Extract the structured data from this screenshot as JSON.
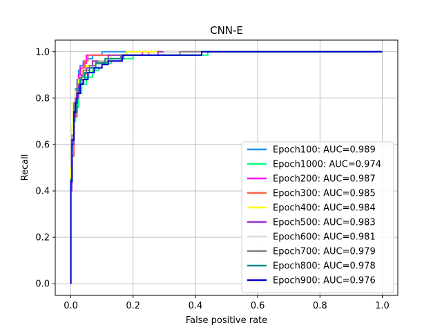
{
  "chart_data": {
    "type": "line",
    "title": "CNN-E",
    "xlabel": "False positive rate",
    "ylabel": "Recall",
    "xlim": [
      -0.05,
      1.05
    ],
    "ylim": [
      -0.05,
      1.05
    ],
    "xticks": [
      "0.0",
      "0.2",
      "0.4",
      "0.6",
      "0.8",
      "1.0"
    ],
    "yticks": [
      "0.0",
      "0.2",
      "0.4",
      "0.6",
      "0.8",
      "1.0"
    ],
    "grid": true,
    "legend_position": "lower-right",
    "series": [
      {
        "name": "Epoch100: AUC=0.989",
        "color": "#1e90ff",
        "x": [
          0,
          0,
          0.003,
          0.003,
          0.01,
          0.01,
          0.015,
          0.015,
          0.02,
          0.02,
          0.025,
          0.025,
          0.03,
          0.03,
          0.04,
          0.04,
          0.05,
          0.05,
          0.07,
          0.07,
          0.1,
          0.1,
          1.0
        ],
        "y": [
          0,
          0.4,
          0.4,
          0.6,
          0.6,
          0.75,
          0.75,
          0.84,
          0.84,
          0.88,
          0.88,
          0.92,
          0.92,
          0.94,
          0.94,
          0.96,
          0.96,
          0.97,
          0.97,
          0.985,
          0.985,
          1.0,
          1.0
        ]
      },
      {
        "name": "Epoch1000: AUC=0.974",
        "color": "#00ff7f",
        "x": [
          0,
          0,
          0.003,
          0.003,
          0.01,
          0.01,
          0.015,
          0.015,
          0.025,
          0.025,
          0.035,
          0.035,
          0.05,
          0.05,
          0.07,
          0.07,
          0.09,
          0.09,
          0.13,
          0.13,
          0.2,
          0.2,
          0.44,
          0.44,
          1.0
        ],
        "y": [
          0,
          0.42,
          0.42,
          0.62,
          0.62,
          0.7,
          0.7,
          0.76,
          0.76,
          0.82,
          0.82,
          0.86,
          0.86,
          0.89,
          0.89,
          0.92,
          0.92,
          0.95,
          0.95,
          0.97,
          0.97,
          0.985,
          0.985,
          1.0,
          1.0
        ]
      },
      {
        "name": "Epoch200: AUC=0.987",
        "color": "#ff00ff",
        "x": [
          0,
          0,
          0.003,
          0.003,
          0.01,
          0.01,
          0.015,
          0.015,
          0.02,
          0.02,
          0.025,
          0.025,
          0.03,
          0.03,
          0.04,
          0.04,
          0.05,
          0.05,
          0.23,
          0.23,
          1.0
        ],
        "y": [
          0,
          0.4,
          0.4,
          0.62,
          0.62,
          0.76,
          0.76,
          0.82,
          0.82,
          0.86,
          0.86,
          0.9,
          0.9,
          0.93,
          0.93,
          0.95,
          0.95,
          0.985,
          0.985,
          1.0,
          1.0
        ]
      },
      {
        "name": "Epoch300: AUC=0.985",
        "color": "#ff6347",
        "x": [
          0,
          0,
          0.003,
          0.003,
          0.01,
          0.01,
          0.02,
          0.02,
          0.025,
          0.025,
          0.035,
          0.035,
          0.045,
          0.045,
          0.055,
          0.055,
          0.25,
          0.25,
          1.0
        ],
        "y": [
          0,
          0.4,
          0.4,
          0.55,
          0.55,
          0.72,
          0.72,
          0.82,
          0.82,
          0.88,
          0.88,
          0.93,
          0.93,
          0.96,
          0.96,
          0.985,
          0.985,
          1.0,
          1.0
        ]
      },
      {
        "name": "Epoch400: AUC=0.984",
        "color": "#ffff00",
        "x": [
          0,
          0,
          0.003,
          0.003,
          0.008,
          0.008,
          0.015,
          0.015,
          0.025,
          0.025,
          0.035,
          0.035,
          0.05,
          0.05,
          0.07,
          0.07,
          0.13,
          0.13,
          0.18,
          0.18,
          1.0
        ],
        "y": [
          0,
          0.5,
          0.5,
          0.68,
          0.68,
          0.78,
          0.78,
          0.83,
          0.83,
          0.88,
          0.88,
          0.92,
          0.92,
          0.94,
          0.94,
          0.96,
          0.96,
          0.985,
          0.985,
          1.0,
          1.0
        ]
      },
      {
        "name": "Epoch500: AUC=0.983",
        "color": "#9932cc",
        "x": [
          0,
          0,
          0.003,
          0.003,
          0.01,
          0.01,
          0.015,
          0.015,
          0.025,
          0.025,
          0.035,
          0.035,
          0.05,
          0.05,
          0.07,
          0.07,
          0.12,
          0.12,
          0.28,
          0.28,
          1.0
        ],
        "y": [
          0,
          0.4,
          0.4,
          0.6,
          0.6,
          0.72,
          0.72,
          0.8,
          0.8,
          0.86,
          0.86,
          0.9,
          0.9,
          0.93,
          0.93,
          0.96,
          0.96,
          0.985,
          0.985,
          1.0,
          1.0
        ]
      },
      {
        "name": "Epoch600: AUC=0.981",
        "color": "#dcdcdc",
        "x": [
          0,
          0,
          0.004,
          0.004,
          0.01,
          0.01,
          0.02,
          0.02,
          0.03,
          0.03,
          0.045,
          0.045,
          0.06,
          0.06,
          0.09,
          0.09,
          0.16,
          0.16,
          0.3,
          0.3,
          1.0
        ],
        "y": [
          0,
          0.45,
          0.45,
          0.62,
          0.62,
          0.74,
          0.74,
          0.82,
          0.82,
          0.87,
          0.87,
          0.9,
          0.9,
          0.93,
          0.93,
          0.96,
          0.96,
          0.985,
          0.985,
          1.0,
          1.0
        ]
      },
      {
        "name": "Epoch700: AUC=0.979",
        "color": "#808080",
        "x": [
          0,
          0,
          0.004,
          0.004,
          0.01,
          0.01,
          0.02,
          0.02,
          0.03,
          0.03,
          0.04,
          0.04,
          0.06,
          0.06,
          0.08,
          0.08,
          0.12,
          0.12,
          0.16,
          0.16,
          0.35,
          0.35,
          1.0
        ],
        "y": [
          0,
          0.45,
          0.45,
          0.64,
          0.64,
          0.78,
          0.78,
          0.86,
          0.86,
          0.89,
          0.89,
          0.92,
          0.92,
          0.94,
          0.94,
          0.955,
          0.955,
          0.97,
          0.97,
          0.985,
          0.985,
          1.0,
          1.0
        ]
      },
      {
        "name": "Epoch800: AUC=0.978",
        "color": "#008b8b",
        "x": [
          0,
          0,
          0.004,
          0.004,
          0.01,
          0.01,
          0.02,
          0.02,
          0.03,
          0.03,
          0.045,
          0.045,
          0.06,
          0.06,
          0.08,
          0.08,
          0.11,
          0.11,
          0.17,
          0.17,
          0.42,
          0.42,
          1.0
        ],
        "y": [
          0,
          0.45,
          0.45,
          0.62,
          0.62,
          0.74,
          0.74,
          0.84,
          0.84,
          0.88,
          0.88,
          0.91,
          0.91,
          0.93,
          0.93,
          0.95,
          0.95,
          0.97,
          0.97,
          0.985,
          0.985,
          1.0,
          1.0
        ]
      },
      {
        "name": "Epoch900: AUC=0.976",
        "color": "#0000cd",
        "x": [
          0,
          0,
          0.004,
          0.004,
          0.01,
          0.01,
          0.015,
          0.015,
          0.02,
          0.02,
          0.03,
          0.03,
          0.04,
          0.04,
          0.055,
          0.055,
          0.075,
          0.075,
          0.1,
          0.1,
          0.12,
          0.12,
          0.165,
          0.165,
          0.42,
          0.42,
          1.0
        ],
        "y": [
          0,
          0.44,
          0.44,
          0.62,
          0.62,
          0.74,
          0.74,
          0.78,
          0.78,
          0.82,
          0.82,
          0.86,
          0.86,
          0.88,
          0.88,
          0.91,
          0.91,
          0.93,
          0.93,
          0.945,
          0.945,
          0.96,
          0.96,
          0.985,
          0.985,
          1.0,
          1.0
        ]
      }
    ]
  }
}
